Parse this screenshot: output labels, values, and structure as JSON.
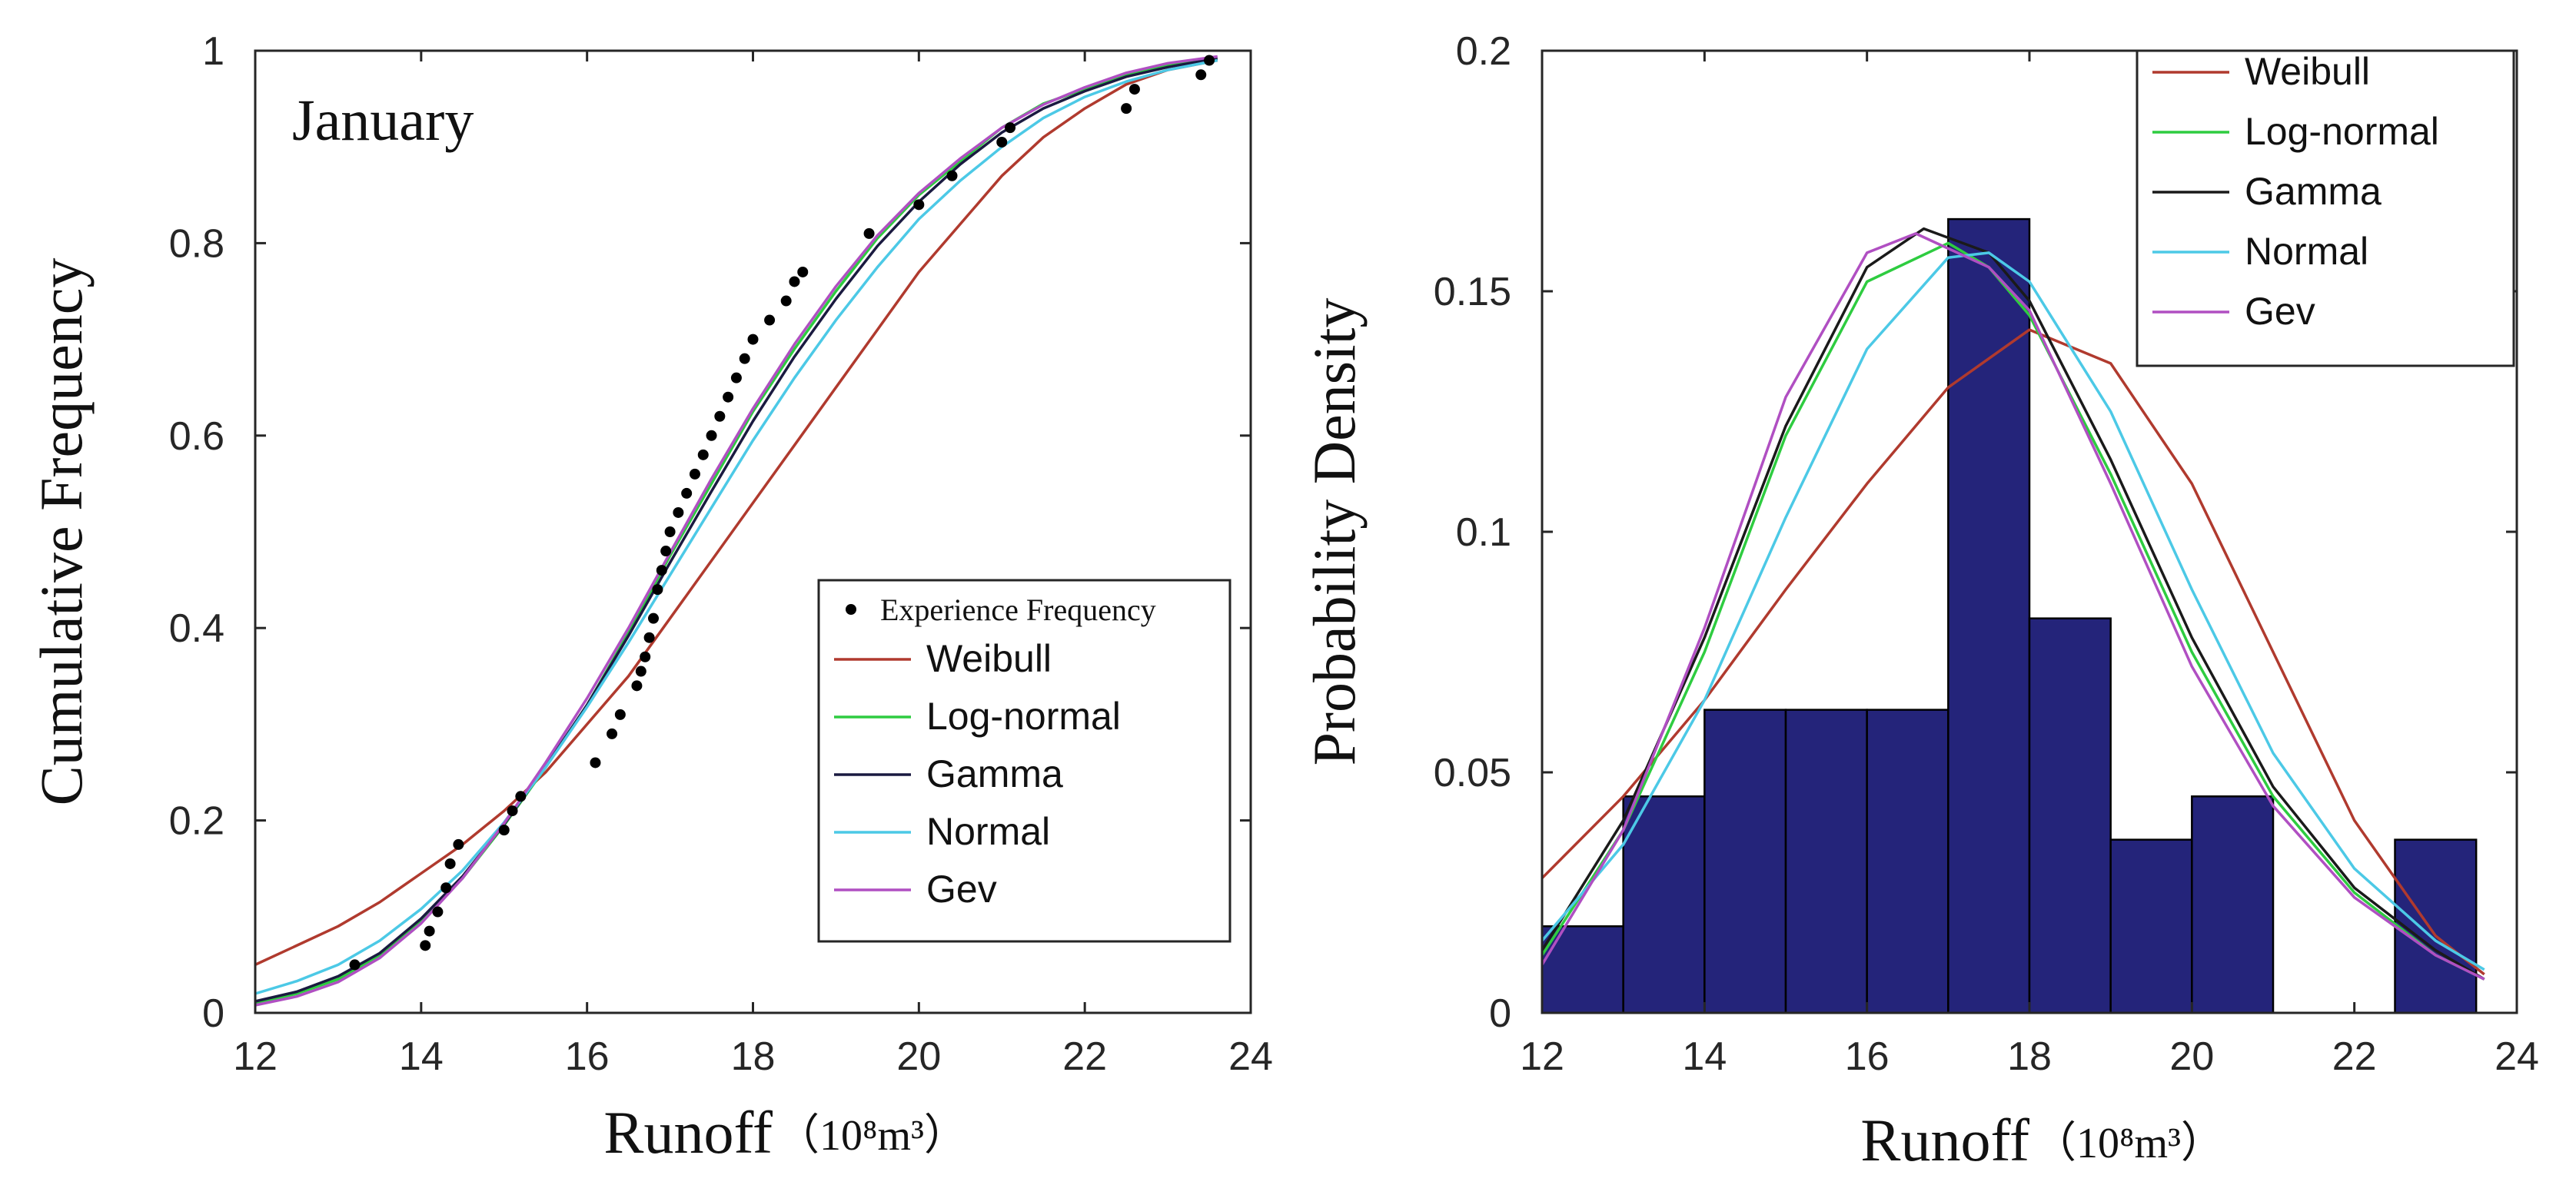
{
  "chart_data": [
    {
      "type": "line",
      "panel": "left",
      "annotation": "January",
      "xlabel": "Runoff",
      "xunit": "（10⁸m³）",
      "ylabel": "Cumulative Frequency",
      "xlim": [
        12,
        24
      ],
      "ylim": [
        0,
        1
      ],
      "xticks": [
        "12",
        "14",
        "16",
        "18",
        "20",
        "22",
        "24"
      ],
      "yticks": [
        "0",
        "0.2",
        "0.4",
        "0.6",
        "0.8",
        "1"
      ],
      "legend_position": "lower-right",
      "legend": [
        "Experience Frequency",
        "Weibull",
        "Log-normal",
        "Gamma",
        "Normal",
        "Gev"
      ],
      "experience_points": [
        [
          13.2,
          0.05
        ],
        [
          14.05,
          0.07
        ],
        [
          14.1,
          0.085
        ],
        [
          14.2,
          0.105
        ],
        [
          14.3,
          0.13
        ],
        [
          14.35,
          0.155
        ],
        [
          14.45,
          0.175
        ],
        [
          15.0,
          0.19
        ],
        [
          15.1,
          0.21
        ],
        [
          15.2,
          0.225
        ],
        [
          16.1,
          0.26
        ],
        [
          16.3,
          0.29
        ],
        [
          16.4,
          0.31
        ],
        [
          16.6,
          0.34
        ],
        [
          16.65,
          0.355
        ],
        [
          16.7,
          0.37
        ],
        [
          16.75,
          0.39
        ],
        [
          16.8,
          0.41
        ],
        [
          16.85,
          0.44
        ],
        [
          16.9,
          0.46
        ],
        [
          16.95,
          0.48
        ],
        [
          17.0,
          0.5
        ],
        [
          17.1,
          0.52
        ],
        [
          17.2,
          0.54
        ],
        [
          17.3,
          0.56
        ],
        [
          17.4,
          0.58
        ],
        [
          17.5,
          0.6
        ],
        [
          17.6,
          0.62
        ],
        [
          17.7,
          0.64
        ],
        [
          17.8,
          0.66
        ],
        [
          17.9,
          0.68
        ],
        [
          18.0,
          0.7
        ],
        [
          18.2,
          0.72
        ],
        [
          18.4,
          0.74
        ],
        [
          18.5,
          0.76
        ],
        [
          18.6,
          0.77
        ],
        [
          19.4,
          0.81
        ],
        [
          20.0,
          0.84
        ],
        [
          20.4,
          0.87
        ],
        [
          21.0,
          0.905
        ],
        [
          21.1,
          0.92
        ],
        [
          22.5,
          0.94
        ],
        [
          22.6,
          0.96
        ],
        [
          23.4,
          0.975
        ],
        [
          23.5,
          0.99
        ]
      ],
      "series": [
        {
          "name": "Weibull",
          "color": "#b03a2e",
          "x": [
            12,
            12.5,
            13,
            13.5,
            14,
            14.5,
            15,
            15.5,
            16,
            16.5,
            17,
            17.5,
            18,
            18.5,
            19,
            19.5,
            20,
            20.5,
            21,
            21.5,
            22,
            22.5,
            23,
            23.6
          ],
          "y": [
            0.05,
            0.07,
            0.09,
            0.115,
            0.145,
            0.175,
            0.21,
            0.25,
            0.3,
            0.35,
            0.41,
            0.47,
            0.53,
            0.59,
            0.65,
            0.71,
            0.77,
            0.82,
            0.87,
            0.91,
            0.94,
            0.965,
            0.98,
            0.99
          ]
        },
        {
          "name": "Log-normal",
          "color": "#2ecc40",
          "x": [
            12,
            12.5,
            13,
            13.5,
            14,
            14.5,
            15,
            15.5,
            16,
            16.5,
            17,
            17.5,
            18,
            18.5,
            19,
            19.5,
            20,
            20.5,
            21,
            21.5,
            22,
            22.5,
            23,
            23.6
          ],
          "y": [
            0.01,
            0.02,
            0.035,
            0.06,
            0.095,
            0.14,
            0.195,
            0.255,
            0.32,
            0.395,
            0.475,
            0.55,
            0.625,
            0.69,
            0.75,
            0.805,
            0.85,
            0.885,
            0.92,
            0.945,
            0.96,
            0.975,
            0.985,
            0.993
          ]
        },
        {
          "name": "Gamma",
          "color": "#1a1a40",
          "x": [
            12,
            12.5,
            13,
            13.5,
            14,
            14.5,
            15,
            15.5,
            16,
            16.5,
            17,
            17.5,
            18,
            18.5,
            19,
            19.5,
            20,
            20.5,
            21,
            21.5,
            22,
            22.5,
            23,
            23.6
          ],
          "y": [
            0.012,
            0.022,
            0.038,
            0.062,
            0.098,
            0.142,
            0.196,
            0.256,
            0.32,
            0.392,
            0.468,
            0.542,
            0.615,
            0.682,
            0.742,
            0.797,
            0.843,
            0.882,
            0.915,
            0.94,
            0.958,
            0.973,
            0.983,
            0.992
          ]
        },
        {
          "name": "Normal",
          "color": "#4cc9e6",
          "x": [
            12,
            12.5,
            13,
            13.5,
            14,
            14.5,
            15,
            15.5,
            16,
            16.5,
            17,
            17.5,
            18,
            18.5,
            19,
            19.5,
            20,
            20.5,
            21,
            21.5,
            22,
            22.5,
            23,
            23.6
          ],
          "y": [
            0.02,
            0.033,
            0.05,
            0.075,
            0.108,
            0.148,
            0.198,
            0.255,
            0.318,
            0.385,
            0.455,
            0.525,
            0.595,
            0.66,
            0.72,
            0.775,
            0.825,
            0.865,
            0.9,
            0.93,
            0.952,
            0.968,
            0.98,
            0.99
          ]
        },
        {
          "name": "Gev",
          "color": "#b04fc2",
          "x": [
            12,
            12.5,
            13,
            13.5,
            14,
            14.5,
            15,
            15.5,
            16,
            16.5,
            17,
            17.5,
            18,
            18.5,
            19,
            19.5,
            20,
            20.5,
            21,
            21.5,
            22,
            22.5,
            23,
            23.6
          ],
          "y": [
            0.008,
            0.017,
            0.032,
            0.057,
            0.093,
            0.14,
            0.197,
            0.26,
            0.327,
            0.4,
            0.478,
            0.555,
            0.628,
            0.695,
            0.755,
            0.808,
            0.852,
            0.888,
            0.92,
            0.944,
            0.962,
            0.977,
            0.987,
            0.994
          ]
        }
      ]
    },
    {
      "type": "bar",
      "panel": "right",
      "xlabel": "Runoff",
      "xunit": "（10⁸m³）",
      "ylabel": "Probability Density",
      "xlim": [
        12,
        24
      ],
      "ylim": [
        0,
        0.2
      ],
      "xticks": [
        "12",
        "14",
        "16",
        "18",
        "20",
        "22",
        "24"
      ],
      "yticks": [
        "0",
        "0.05",
        "0.1",
        "0.15",
        "0.2"
      ],
      "legend_position": "top-right",
      "legend": [
        "Weibull",
        "Log-normal",
        "Gamma",
        "Normal",
        "Gev"
      ],
      "bar_color": "#24247a",
      "histogram": [
        {
          "from": 12.0,
          "to": 13.0,
          "value": 0.018
        },
        {
          "from": 13.0,
          "to": 14.0,
          "value": 0.045
        },
        {
          "from": 14.0,
          "to": 15.0,
          "value": 0.063
        },
        {
          "from": 15.0,
          "to": 16.0,
          "value": 0.063
        },
        {
          "from": 16.0,
          "to": 17.0,
          "value": 0.063
        },
        {
          "from": 17.0,
          "to": 18.0,
          "value": 0.165
        },
        {
          "from": 18.0,
          "to": 19.0,
          "value": 0.082
        },
        {
          "from": 19.0,
          "to": 20.0,
          "value": 0.036
        },
        {
          "from": 20.0,
          "to": 21.0,
          "value": 0.045
        },
        {
          "from": 22.5,
          "to": 23.5,
          "value": 0.036
        }
      ],
      "series": [
        {
          "name": "Weibull",
          "color": "#b03a2e",
          "x": [
            12,
            13,
            14,
            15,
            16,
            17,
            18,
            19,
            20,
            21,
            22,
            23,
            23.6
          ],
          "y": [
            0.028,
            0.045,
            0.065,
            0.088,
            0.11,
            0.13,
            0.142,
            0.135,
            0.11,
            0.075,
            0.04,
            0.016,
            0.008
          ]
        },
        {
          "name": "Log-normal",
          "color": "#2ecc40",
          "x": [
            12,
            13,
            14,
            15,
            16,
            17,
            17.5,
            18,
            19,
            20,
            21,
            22,
            23,
            23.6
          ],
          "y": [
            0.012,
            0.038,
            0.075,
            0.12,
            0.152,
            0.16,
            0.155,
            0.145,
            0.112,
            0.075,
            0.045,
            0.025,
            0.012,
            0.007
          ]
        },
        {
          "name": "Gamma",
          "color": "#1a1a1a",
          "x": [
            12,
            13,
            14,
            15,
            16,
            16.7,
            17.5,
            18,
            19,
            20,
            21,
            22,
            23,
            23.6
          ],
          "y": [
            0.013,
            0.04,
            0.078,
            0.122,
            0.155,
            0.163,
            0.158,
            0.148,
            0.115,
            0.078,
            0.047,
            0.026,
            0.013,
            0.007
          ]
        },
        {
          "name": "Normal",
          "color": "#4cc9e6",
          "x": [
            12,
            13,
            14,
            15,
            16,
            17,
            17.5,
            18,
            19,
            20,
            21,
            22,
            23,
            23.6
          ],
          "y": [
            0.015,
            0.035,
            0.065,
            0.103,
            0.138,
            0.157,
            0.158,
            0.152,
            0.125,
            0.088,
            0.054,
            0.03,
            0.015,
            0.009
          ]
        },
        {
          "name": "Gev",
          "color": "#b04fc2",
          "x": [
            12,
            13,
            14,
            15,
            16,
            16.6,
            17.5,
            18,
            19,
            20,
            21,
            22,
            23,
            23.6
          ],
          "y": [
            0.01,
            0.038,
            0.08,
            0.128,
            0.158,
            0.162,
            0.155,
            0.146,
            0.11,
            0.072,
            0.043,
            0.024,
            0.012,
            0.007
          ]
        }
      ]
    }
  ]
}
